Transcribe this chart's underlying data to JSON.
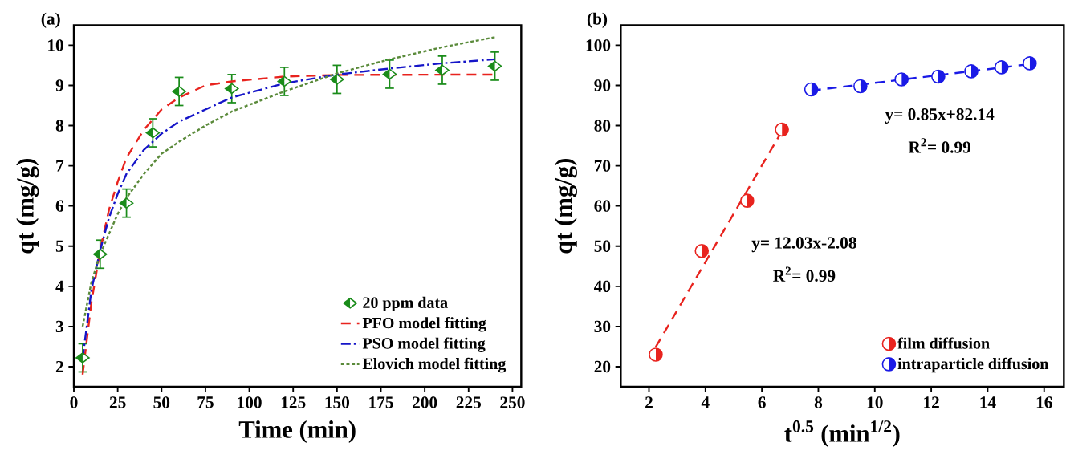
{
  "chart_data": [
    {
      "type": "scatter",
      "title": "(a)",
      "xlabel": "Time (min)",
      "ylabel": "qt (mg/g)",
      "xlim": [
        0,
        255
      ],
      "ylim": [
        1.5,
        10.5
      ],
      "xticks": [
        0,
        25,
        50,
        75,
        100,
        125,
        150,
        175,
        200,
        225,
        250
      ],
      "yticks": [
        2,
        3,
        4,
        5,
        6,
        7,
        8,
        9,
        10
      ],
      "legend": "bottom right",
      "series": [
        {
          "name": "20 ppm data",
          "type": "scatter",
          "marker": "diamond",
          "color": "#1a8c1a",
          "x": [
            5,
            15,
            30,
            45,
            60,
            90,
            120,
            150,
            180,
            210,
            240
          ],
          "values": [
            2.22,
            4.8,
            6.07,
            7.82,
            8.85,
            8.92,
            9.1,
            9.15,
            9.28,
            9.38,
            9.48
          ],
          "errors": [
            0.35,
            0.35,
            0.35,
            0.35,
            0.35,
            0.35,
            0.35,
            0.35,
            0.35,
            0.35,
            0.35
          ]
        },
        {
          "name": "PFO model fitting",
          "type": "line",
          "line_style": "dashed",
          "color": "#e8231e",
          "x": [
            5,
            10,
            15,
            20,
            25,
            30,
            40,
            50,
            60,
            75,
            90,
            120,
            150,
            240
          ],
          "values": [
            1.8,
            3.6,
            4.9,
            5.9,
            6.6,
            7.2,
            7.9,
            8.4,
            8.7,
            9.0,
            9.1,
            9.22,
            9.26,
            9.27
          ]
        },
        {
          "name": "PSO model fitting",
          "type": "line",
          "line_style": "dashdot",
          "color": "#1515c8",
          "x": [
            5,
            10,
            15,
            20,
            25,
            30,
            40,
            50,
            60,
            75,
            90,
            120,
            150,
            180,
            210,
            240
          ],
          "values": [
            2.2,
            3.9,
            4.9,
            5.7,
            6.3,
            6.8,
            7.4,
            7.8,
            8.1,
            8.4,
            8.7,
            9.05,
            9.27,
            9.42,
            9.55,
            9.65
          ]
        },
        {
          "name": "Elovich model fitting",
          "type": "line",
          "line_style": "dotted",
          "color": "#5a8a3a",
          "x": [
            5,
            10,
            15,
            20,
            25,
            30,
            40,
            50,
            60,
            75,
            90,
            120,
            150,
            180,
            210,
            240
          ],
          "values": [
            3.0,
            4.1,
            4.8,
            5.3,
            5.8,
            6.2,
            6.8,
            7.3,
            7.6,
            8.0,
            8.35,
            8.85,
            9.3,
            9.65,
            9.95,
            10.2
          ]
        }
      ]
    },
    {
      "type": "scatter",
      "title": "(b)",
      "xlabel": "t$^{0.5}$ (min$^{1/2}$)",
      "ylabel": "qt (mg/g)",
      "xlim": [
        1,
        16.7
      ],
      "ylim": [
        15,
        105
      ],
      "xticks": [
        2,
        4,
        6,
        8,
        10,
        12,
        14,
        16
      ],
      "yticks": [
        20,
        30,
        40,
        50,
        60,
        70,
        80,
        90,
        100
      ],
      "legend": "bottom right",
      "annotations": [
        "y= 0.85x+82.14",
        "R$^{2}$= 0.99",
        "y= 12.03x-2.08",
        "R$^{2}$= 0.99"
      ],
      "series": [
        {
          "name": "film diffusion",
          "type": "scatter",
          "marker": "circle",
          "color": "#e8231e",
          "x": [
            2.24,
            3.87,
            5.48,
            6.71
          ],
          "values": [
            23,
            48.8,
            61.3,
            79
          ]
        },
        {
          "name": "intraparticle diffusion",
          "type": "scatter",
          "marker": "circle",
          "color": "#1a1ae6",
          "x": [
            7.75,
            9.49,
            10.95,
            12.25,
            13.42,
            14.49,
            15.49
          ],
          "values": [
            89,
            89.8,
            91.5,
            92.2,
            93.5,
            94.5,
            95.5
          ]
        },
        {
          "type": "line",
          "line_style": "dashed",
          "color": "#e8231e",
          "x": [
            2.24,
            6.71
          ],
          "values": [
            24.9,
            78.6
          ]
        },
        {
          "type": "line",
          "line_style": "dashed",
          "color": "#1a1ae6",
          "x": [
            7.75,
            15.49
          ],
          "values": [
            88.7,
            95.3
          ]
        }
      ]
    }
  ]
}
